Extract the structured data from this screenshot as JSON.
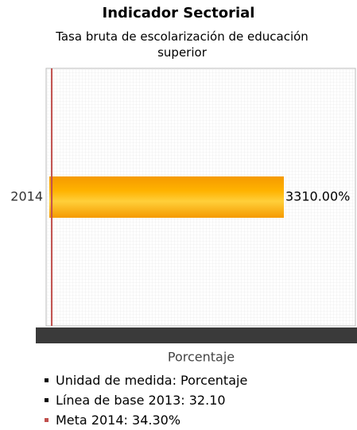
{
  "chart_data": {
    "type": "bar",
    "orientation": "horizontal",
    "title": "Indicador Sectorial",
    "subtitle": "Tasa bruta de escolarización de educación superior",
    "categories": [
      "2014"
    ],
    "values": [
      3310
    ],
    "value_labels": [
      "3310.00%"
    ],
    "color": "#f59a00",
    "xlabel": "Porcentaje",
    "xlim": [
      0,
      4320
    ],
    "grid": true,
    "target_line": {
      "value": 34.3,
      "color": "#c0504d"
    },
    "legend_items": [
      {
        "text": "Unidad de medida: Porcentaje",
        "color": "#000000"
      },
      {
        "text": "Línea de base 2013: 32.10",
        "color": "#000000"
      },
      {
        "text": "Meta 2014: 34.30%",
        "color": "#c0504d"
      }
    ]
  }
}
